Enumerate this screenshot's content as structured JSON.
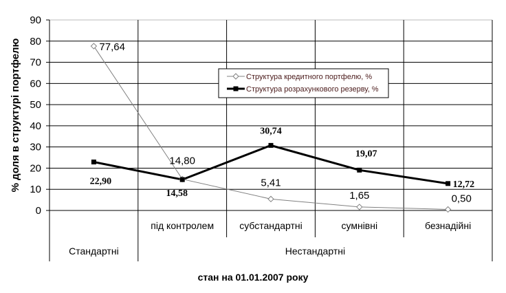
{
  "chart_data": {
    "type": "line",
    "title": "",
    "xlabel": "стан на 01.01.2007 року",
    "ylabel": "% доля в структурі портфелю",
    "ylim": [
      0,
      90
    ],
    "yticks": [
      0,
      10,
      20,
      30,
      40,
      50,
      60,
      70,
      80,
      90
    ],
    "grid": true,
    "legend_placement": "center-top",
    "categories": [
      "",
      "під контролем",
      "субстандартні",
      "сумнівні",
      "безнадійні"
    ],
    "category_groups": [
      {
        "label": "Стандартні",
        "span": 1
      },
      {
        "label": "Нестандартні",
        "span": 4
      }
    ],
    "series": [
      {
        "name": "Структура кредитного портфелю, %",
        "values": [
          77.64,
          14.8,
          5.41,
          1.65,
          0.5
        ],
        "labels": [
          "77,64",
          "14,80",
          "5,41",
          "1,65",
          "0,50"
        ],
        "marker": "diamond-open",
        "color": "#808080"
      },
      {
        "name": "Структура розрахункового резерву, %",
        "values": [
          22.9,
          14.58,
          30.74,
          19.07,
          12.72
        ],
        "labels": [
          "22,90",
          "14,58",
          "30,74",
          "19,07",
          "12,72"
        ],
        "marker": "square-filled",
        "color": "#000000"
      }
    ]
  }
}
